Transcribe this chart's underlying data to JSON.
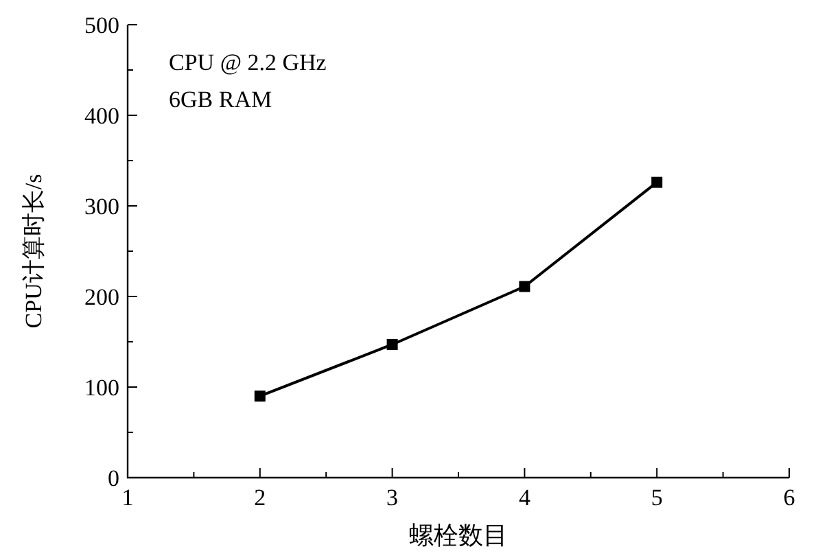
{
  "chart_data": {
    "type": "line",
    "xlabel": "螺栓数目",
    "ylabel": "CPU计算时长/s",
    "annotations": [
      "CPU @ 2.2 GHz",
      "6GB RAM"
    ],
    "x": [
      2,
      3,
      4,
      5
    ],
    "series": [
      {
        "color": "#000000",
        "values": [
          90,
          147,
          211,
          326
        ]
      }
    ],
    "xlim": [
      1,
      6
    ],
    "xticks": [
      1,
      2,
      3,
      4,
      5,
      6
    ],
    "ylim": [
      0,
      500
    ],
    "yticks": [
      0,
      100,
      200,
      300,
      400,
      500
    ],
    "marker": "square",
    "line_style": "solid",
    "grid": false
  }
}
